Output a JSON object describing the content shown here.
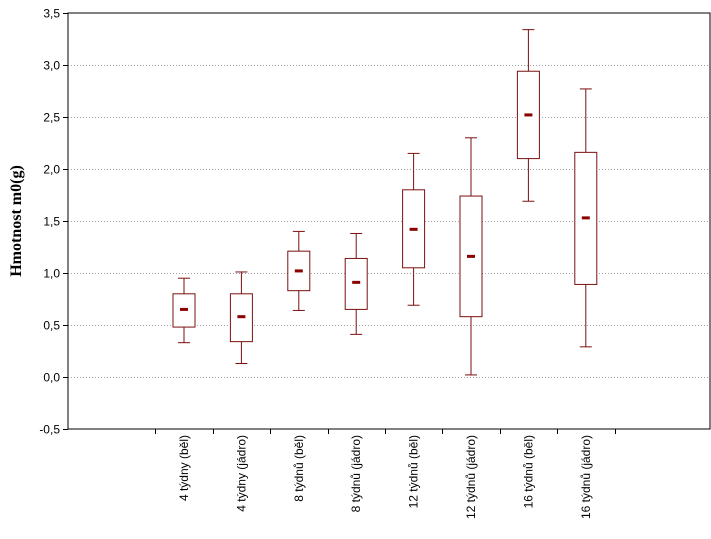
{
  "chart_data": {
    "type": "boxplot",
    "ylabel": "Hmotnost m0(g)",
    "xlabel": "",
    "ylim": [
      -0.5,
      3.5
    ],
    "yticks": [
      "-0,5",
      "0,0",
      "0,5",
      "1,0",
      "1,5",
      "2,0",
      "2,5",
      "3,0",
      "3,5"
    ],
    "grid": "horizontal-dotted",
    "categories": [
      "4 týdny (běl)",
      "4 týdny (jádro)",
      "8 týdnů (běl)",
      "8 týdnů (jádro)",
      "12 týdnů (běl)",
      "12 týdnů (jádro)",
      "16 týdnů (běl)",
      "16 týdnů (jádro)"
    ],
    "series": [
      {
        "boxes": [
          {
            "min": 0.33,
            "q1": 0.48,
            "median": 0.65,
            "q3": 0.8,
            "max": 0.95
          },
          {
            "min": 0.13,
            "q1": 0.34,
            "median": 0.58,
            "q3": 0.8,
            "max": 1.01
          },
          {
            "min": 0.64,
            "q1": 0.83,
            "median": 1.02,
            "q3": 1.21,
            "max": 1.4
          },
          {
            "min": 0.41,
            "q1": 0.65,
            "median": 0.91,
            "q3": 1.14,
            "max": 1.38
          },
          {
            "min": 0.69,
            "q1": 1.05,
            "median": 1.42,
            "q3": 1.8,
            "max": 2.15
          },
          {
            "min": 0.02,
            "q1": 0.58,
            "median": 1.16,
            "q3": 1.74,
            "max": 2.3
          },
          {
            "min": 1.69,
            "q1": 2.1,
            "median": 2.52,
            "q3": 2.94,
            "max": 3.34
          },
          {
            "min": 0.29,
            "q1": 0.89,
            "median": 1.53,
            "q3": 2.16,
            "max": 2.77
          }
        ]
      }
    ],
    "colors": {
      "box": "#7a0f0f",
      "median": "#8b0000",
      "axis": "#000000",
      "grid": "#a0a0a0"
    }
  }
}
